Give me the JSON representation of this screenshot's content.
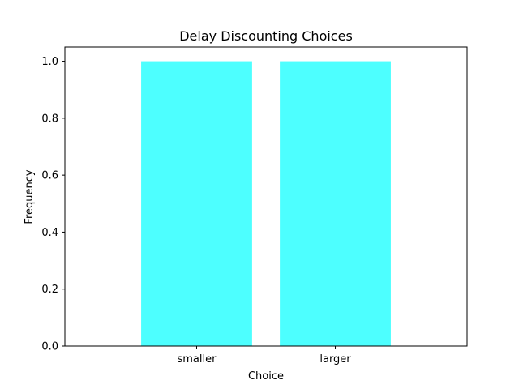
{
  "chart_data": {
    "type": "bar",
    "title": "Delay Discounting Choices",
    "xlabel": "Choice",
    "ylabel": "Frequency",
    "categories": [
      "smaller",
      "larger"
    ],
    "values": [
      1.0,
      1.0
    ],
    "ylim": [
      0,
      1.05
    ],
    "yticks": [
      "0.0",
      "0.2",
      "0.4",
      "0.6",
      "0.8",
      "1.0"
    ],
    "bar_color": "#4dffff",
    "grid": false,
    "legend": "none"
  }
}
